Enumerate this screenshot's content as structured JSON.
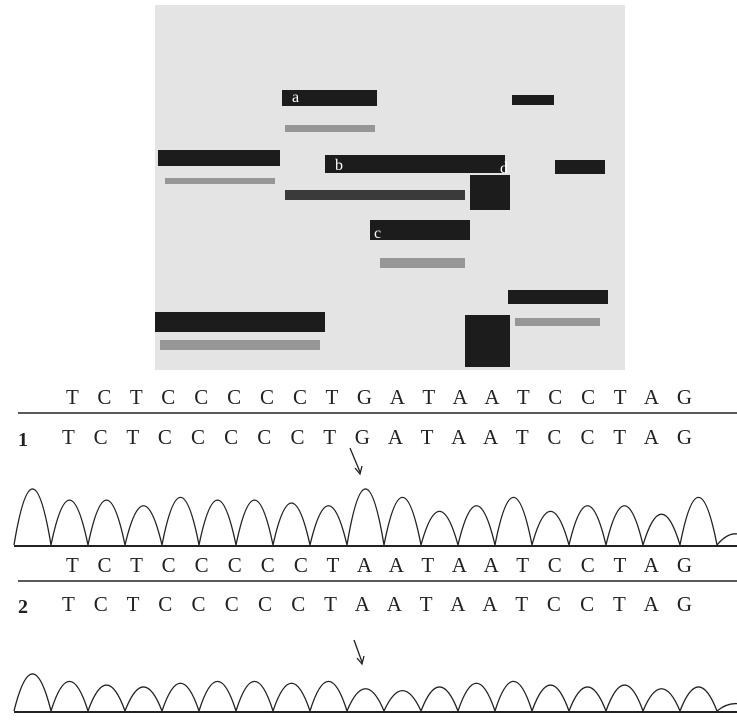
{
  "gel": {
    "band_labels": [
      "a",
      "b",
      "c",
      "d"
    ]
  },
  "panels": [
    {
      "label": "1",
      "reference": "T C T C C C C C T G A T A A T C C T A G",
      "sequence": "T C T C C C C C T G A T A A T C C T A G"
    },
    {
      "label": "2",
      "reference": "T C T C C C C C T A A T A A T C C T A G",
      "sequence": "T C T C C C C C T A A T A A T C C T A G"
    }
  ]
}
